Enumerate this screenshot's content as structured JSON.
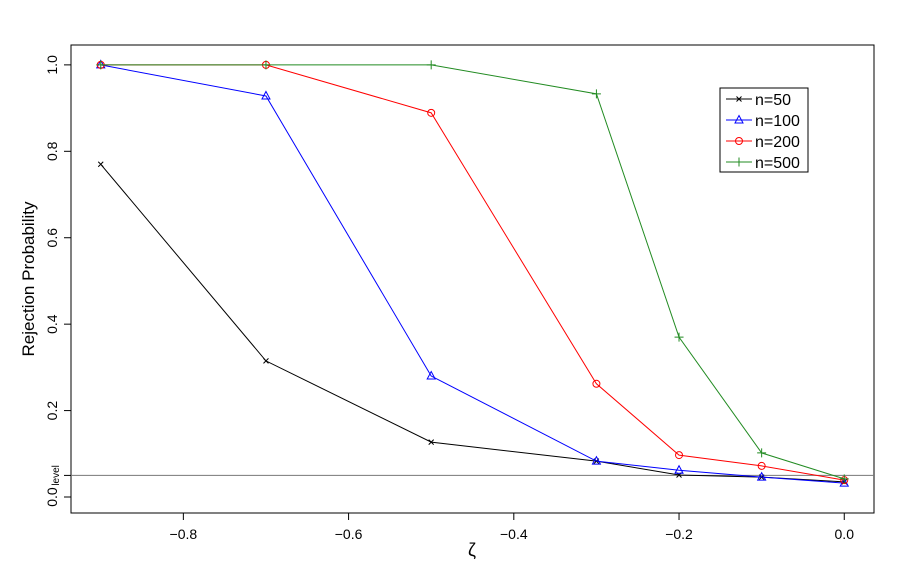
{
  "chart_data": {
    "type": "line",
    "x_label": "ζ",
    "y_label": "Rejection Probability",
    "x": [
      -0.9,
      -0.7,
      -0.5,
      -0.3,
      -0.2,
      -0.1,
      0
    ],
    "series": [
      {
        "name": "n=50",
        "color": "#000000",
        "marker": "cross",
        "values": [
          0.77,
          0.315,
          0.127,
          0.083,
          0.051,
          0.046,
          0.035
        ]
      },
      {
        "name": "n=100",
        "color": "#0000ff",
        "marker": "triangle",
        "values": [
          1.0,
          0.928,
          0.28,
          0.083,
          0.062,
          0.046,
          0.032
        ]
      },
      {
        "name": "n=200",
        "color": "#ff0000",
        "marker": "circle",
        "values": [
          1.0,
          1.0,
          0.889,
          0.262,
          0.097,
          0.072,
          0.039
        ]
      },
      {
        "name": "n=500",
        "color": "#228b22",
        "marker": "plus",
        "values": [
          1.0,
          1.0,
          1.0,
          0.933,
          0.37,
          0.102,
          0.042
        ]
      }
    ],
    "xlim": [
      -0.936,
      0.036
    ],
    "ylim": [
      -0.037,
      1.046
    ],
    "xticks": [
      {
        "value": -0.8,
        "label": "−0.8"
      },
      {
        "value": -0.6,
        "label": "−0.6"
      },
      {
        "value": -0.4,
        "label": "−0.4"
      },
      {
        "value": -0.2,
        "label": "−0.2"
      },
      {
        "value": 0,
        "label": "0.0"
      }
    ],
    "yticks": [
      {
        "value": 0,
        "label": "0.0"
      },
      {
        "value": 0.05,
        "label": "level"
      },
      0.2,
      0.4,
      0.6,
      0.8,
      {
        "value": 1,
        "label": "1.0"
      }
    ],
    "reference_line": 0.05,
    "legend": "top-right"
  }
}
